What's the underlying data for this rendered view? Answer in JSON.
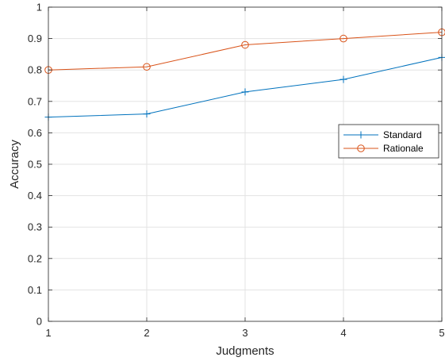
{
  "chart_data": {
    "type": "line",
    "title": "",
    "xlabel": "Judgments",
    "ylabel": "Accuracy",
    "x": [
      1,
      2,
      3,
      4,
      5
    ],
    "x_tick_labels": [
      "1",
      "2",
      "3",
      "4",
      "5"
    ],
    "y_tick_labels": [
      "0",
      "0.1",
      "0.2",
      "0.3",
      "0.4",
      "0.5",
      "0.6",
      "0.7",
      "0.8",
      "0.9",
      "1"
    ],
    "xlim": [
      1,
      5
    ],
    "ylim": [
      0,
      1
    ],
    "grid": true,
    "legend_position": "right",
    "series": [
      {
        "name": "Standard",
        "values": [
          0.65,
          0.66,
          0.73,
          0.77,
          0.84
        ],
        "color": "#0072bd",
        "marker": "plus"
      },
      {
        "name": "Rationale",
        "values": [
          0.8,
          0.81,
          0.88,
          0.9,
          0.92
        ],
        "color": "#d95319",
        "marker": "circle"
      }
    ]
  }
}
